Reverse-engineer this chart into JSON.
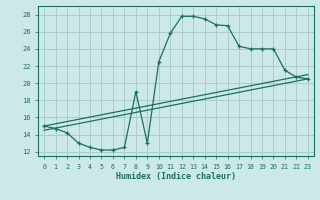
{
  "xlabel": "Humidex (Indice chaleur)",
  "bg_color": "#cde8e8",
  "grid_color": "#a8cccc",
  "line_color": "#1a7060",
  "xlim": [
    -0.5,
    23.5
  ],
  "ylim": [
    11.5,
    29.0
  ],
  "xticks": [
    0,
    1,
    2,
    3,
    4,
    5,
    6,
    7,
    8,
    9,
    10,
    11,
    12,
    13,
    14,
    15,
    16,
    17,
    18,
    19,
    20,
    21,
    22,
    23
  ],
  "yticks": [
    12,
    14,
    16,
    18,
    20,
    22,
    24,
    26,
    28
  ],
  "curve1_x": [
    0,
    1,
    2,
    3,
    4,
    5,
    6,
    7,
    8,
    9,
    10,
    11,
    12,
    13,
    14,
    15,
    16,
    17,
    18,
    19,
    20,
    21,
    22,
    23
  ],
  "curve1_y": [
    15.0,
    14.7,
    14.2,
    13.0,
    12.5,
    12.2,
    12.2,
    12.5,
    19.0,
    13.0,
    22.5,
    25.8,
    27.8,
    27.8,
    27.5,
    26.8,
    26.7,
    24.3,
    24.0,
    24.0,
    24.0,
    21.5,
    20.7,
    20.5
  ],
  "line1_x": [
    0,
    23
  ],
  "line1_y": [
    14.5,
    20.5
  ],
  "line2_x": [
    0,
    23
  ],
  "line2_y": [
    15.0,
    21.0
  ]
}
